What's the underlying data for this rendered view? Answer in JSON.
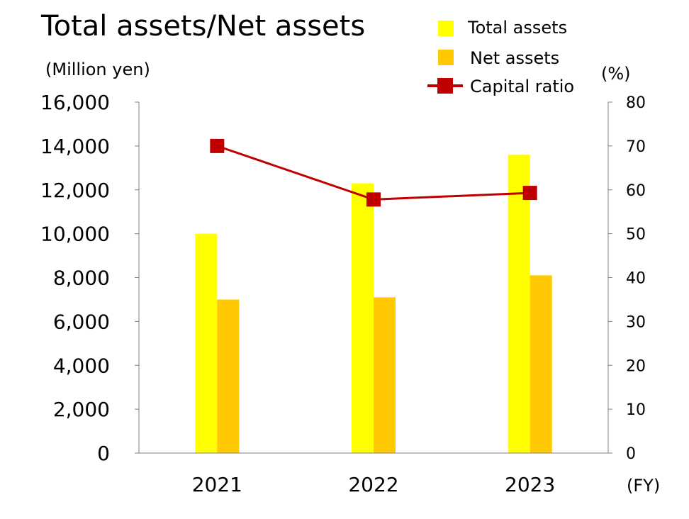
{
  "chart_data": {
    "type": "bar",
    "title": "Total assets/Net assets",
    "y_unit": "(Million yen)",
    "y2_unit": "(%)",
    "x_unit": "(FY)",
    "categories": [
      "2021",
      "2022",
      "2023"
    ],
    "ylim": [
      0,
      16000
    ],
    "y_ticks": [
      0,
      2000,
      4000,
      6000,
      8000,
      10000,
      12000,
      14000,
      16000
    ],
    "y_tick_labels": [
      "0",
      "2,000",
      "4,000",
      "6,000",
      "8,000",
      "10,000",
      "12,000",
      "14,000",
      "16,000"
    ],
    "y2lim": [
      0,
      80
    ],
    "y2_ticks": [
      0,
      10,
      20,
      30,
      40,
      50,
      60,
      70,
      80
    ],
    "y2_tick_labels": [
      "0",
      "10",
      "20",
      "30",
      "40",
      "50",
      "60",
      "70",
      "80"
    ],
    "grid": false,
    "legend_position": "top-right",
    "series": [
      {
        "name": "Total assets",
        "type": "bar",
        "axis": "left",
        "color": "#ffff00",
        "values": [
          10000,
          12300,
          13600
        ]
      },
      {
        "name": "Net assets",
        "type": "bar",
        "axis": "left",
        "color": "#ffc800",
        "values": [
          7000,
          7100,
          8100
        ]
      },
      {
        "name": "Capital ratio",
        "type": "line",
        "axis": "right",
        "color": "#c00000",
        "values": [
          70,
          57.8,
          59.3
        ]
      }
    ]
  }
}
